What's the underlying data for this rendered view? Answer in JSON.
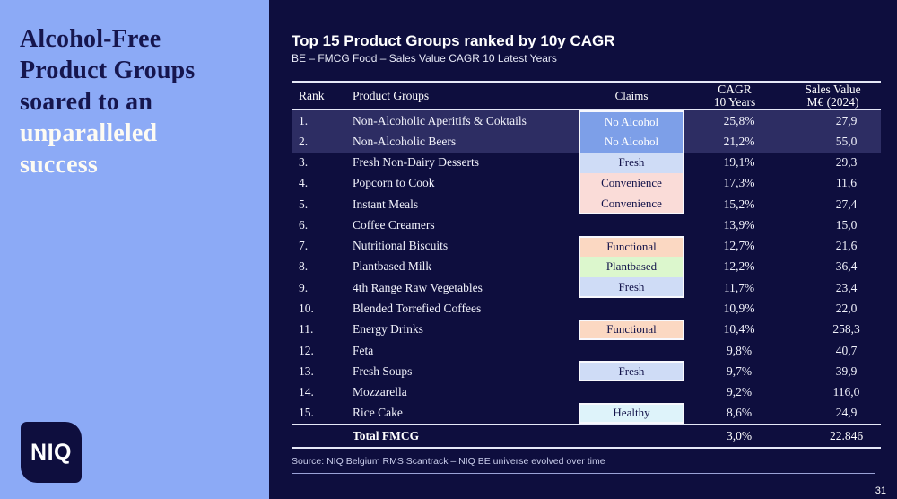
{
  "sidebar": {
    "title_dark": "Alcohol-Free\nProduct Groups\nsoared to an",
    "title_light": "unparalleled\nsuccess",
    "logo_text": "NIQ"
  },
  "header": {
    "title": "Top 15 Product Groups ranked by 10y CAGR",
    "subtitle": "BE – FMCG Food – Sales Value CAGR 10 Latest Years"
  },
  "table": {
    "columns": {
      "rank": "Rank",
      "product": "Product Groups",
      "claims": "Claims",
      "cagr": "CAGR\n10 Years",
      "sales": "Sales Value\nM€ (2024)"
    },
    "rows": [
      {
        "rank": "1.",
        "name": "Non-Alcoholic Aperitifs & Coktails",
        "claim": "No Alcohol",
        "block": "start",
        "cagr": "25,8%",
        "sales": "27,9",
        "highlighted": true
      },
      {
        "rank": "2.",
        "name": "Non-Alcoholic Beers",
        "claim": "No Alcohol",
        "block": "mid",
        "cagr": "21,2%",
        "sales": "55,0",
        "highlighted": true
      },
      {
        "rank": "3.",
        "name": "Fresh Non-Dairy Desserts",
        "claim": "Fresh",
        "block": "mid",
        "cagr": "19,1%",
        "sales": "29,3",
        "highlighted": false
      },
      {
        "rank": "4.",
        "name": "Popcorn to Cook",
        "claim": "Convenience",
        "block": "mid",
        "cagr": "17,3%",
        "sales": "11,6",
        "highlighted": false
      },
      {
        "rank": "5.",
        "name": "Instant Meals",
        "claim": "Convenience",
        "block": "end",
        "cagr": "15,2%",
        "sales": "27,4",
        "highlighted": false
      },
      {
        "rank": "6.",
        "name": "Coffee Creamers",
        "claim": null,
        "block": null,
        "cagr": "13,9%",
        "sales": "15,0",
        "highlighted": false
      },
      {
        "rank": "7.",
        "name": "Nutritional Biscuits",
        "claim": "Functional",
        "block": "start",
        "cagr": "12,7%",
        "sales": "21,6",
        "highlighted": false
      },
      {
        "rank": "8.",
        "name": "Plantbased Milk",
        "claim": "Plantbased",
        "block": "mid",
        "cagr": "12,2%",
        "sales": "36,4",
        "highlighted": false
      },
      {
        "rank": "9.",
        "name": "4th Range Raw Vegetables",
        "claim": "Fresh",
        "block": "end",
        "cagr": "11,7%",
        "sales": "23,4",
        "highlighted": false
      },
      {
        "rank": "10.",
        "name": "Blended Torrefied Coffees",
        "claim": null,
        "block": null,
        "cagr": "10,9%",
        "sales": "22,0",
        "highlighted": false
      },
      {
        "rank": "11.",
        "name": "Energy Drinks",
        "claim": "Functional",
        "block": "solo",
        "cagr": "10,4%",
        "sales": "258,3",
        "highlighted": false
      },
      {
        "rank": "12.",
        "name": "Feta",
        "claim": null,
        "block": null,
        "cagr": "9,8%",
        "sales": "40,7",
        "highlighted": false
      },
      {
        "rank": "13.",
        "name": "Fresh Soups",
        "claim": "Fresh",
        "block": "solo",
        "cagr": "9,7%",
        "sales": "39,9",
        "highlighted": false
      },
      {
        "rank": "14.",
        "name": "Mozzarella",
        "claim": null,
        "block": null,
        "cagr": "9,2%",
        "sales": "116,0",
        "highlighted": false
      },
      {
        "rank": "15.",
        "name": "Rice Cake",
        "claim": "Healthy",
        "block": "solo",
        "cagr": "8,6%",
        "sales": "24,9",
        "highlighted": false
      }
    ],
    "total": {
      "label": "Total FMCG",
      "cagr": "3,0%",
      "sales": "22.846"
    }
  },
  "source": "Source: NIQ Belgium RMS Scantrack – NIQ BE universe evolved over time",
  "page_number": "31",
  "colors": {
    "background": "#0e0e3e",
    "panel": "#8caaf6",
    "navy_text": "#16164e",
    "cream": "#fdfbf3",
    "highlight": "#2d2d63",
    "line": "#e5e8f7",
    "claims": {
      "No Alcohol": {
        "bg": "#7d9fe8",
        "text": "#ffffff"
      },
      "Fresh": {
        "bg": "#cfdcf6",
        "text": "#13134a"
      },
      "Convenience": {
        "bg": "#fadcd8",
        "text": "#13134a"
      },
      "Functional": {
        "bg": "#fbd8c2",
        "text": "#13134a"
      },
      "Plantbased": {
        "bg": "#dcf7cd",
        "text": "#13134a"
      },
      "Healthy": {
        "bg": "#def3fa",
        "text": "#13134a"
      }
    }
  }
}
